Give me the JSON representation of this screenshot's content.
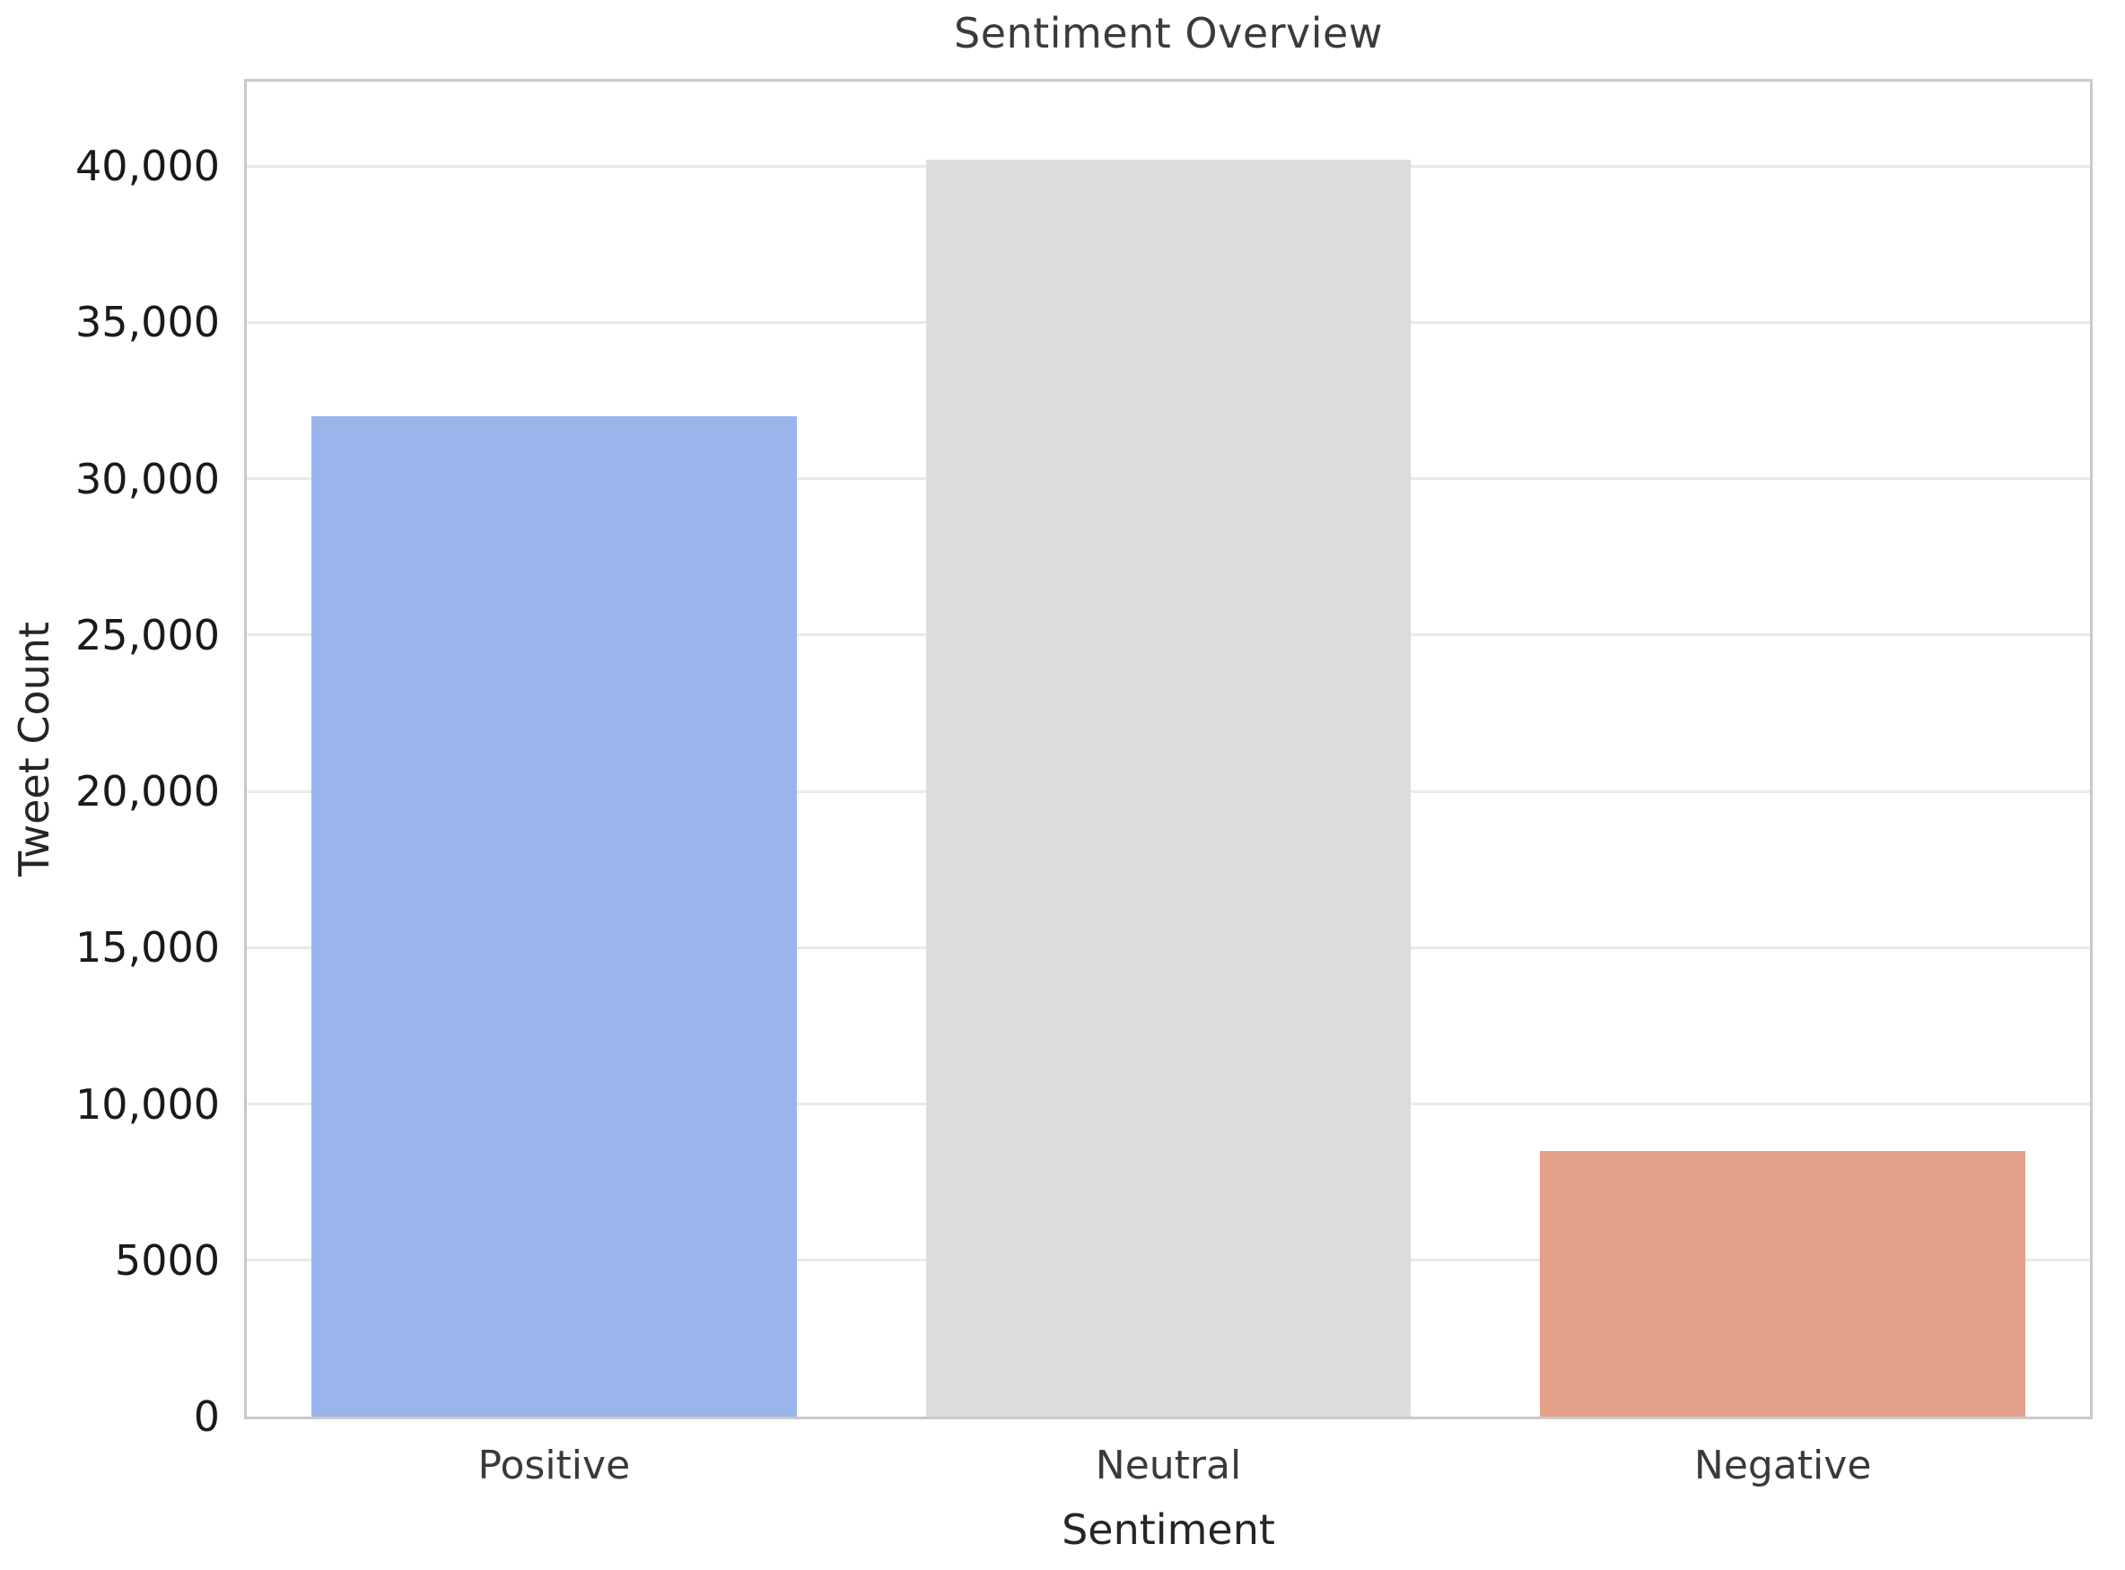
{
  "chart_data": {
    "type": "bar",
    "title": "Sentiment Overview",
    "xlabel": "Sentiment",
    "ylabel": "Tweet Count",
    "categories": [
      "Positive",
      "Neutral",
      "Negative"
    ],
    "values": [
      32000,
      40200,
      8500
    ],
    "bar_colors": [
      "#9ab4ec",
      "#dcdcdc",
      "#e4a08a"
    ],
    "bar_width_fraction": 0.79,
    "ylim": [
      0,
      42700
    ],
    "ytick_values": [
      0,
      5000,
      10000,
      15000,
      20000,
      25000,
      30000,
      35000,
      40000
    ],
    "ytick_labels": [
      "0",
      "5000",
      "10,000",
      "15,000",
      "20,000",
      "25,000",
      "30,000",
      "35,000",
      "40,000"
    ],
    "grid": "horizontal",
    "legend": "none"
  },
  "style": {
    "background": "#ffffff",
    "grid_color": "#e9e9e9",
    "spine_color": "#c9c9c9",
    "title_color": "#3a3a3a",
    "tick_color": "#1a1a1a",
    "label_color": "#262626"
  }
}
